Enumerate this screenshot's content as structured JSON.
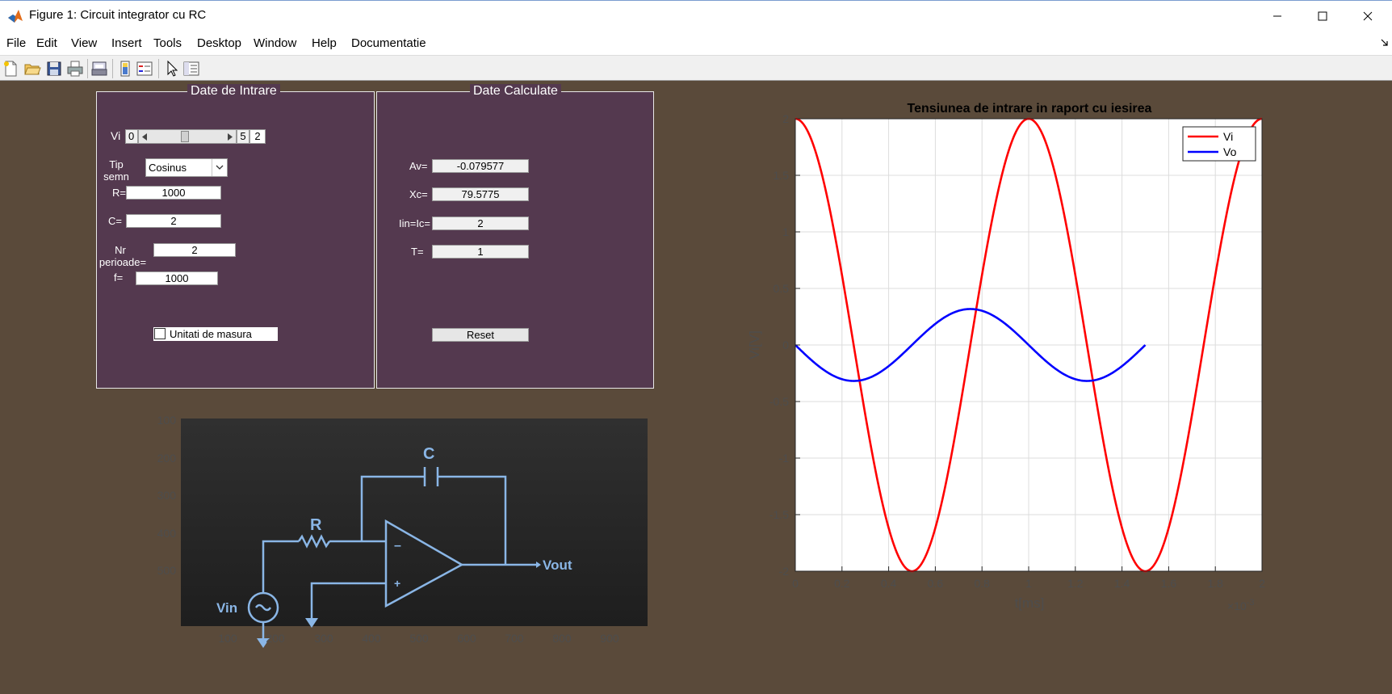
{
  "window": {
    "title": "Figure 1: Circuit integrator cu RC"
  },
  "menu": [
    "File",
    "Edit",
    "View",
    "Insert",
    "Tools",
    "Desktop",
    "Window",
    "Help",
    "Documentatie"
  ],
  "toolbar_icons": [
    "new-figure-icon",
    "open-file-icon",
    "save-icon",
    "print-icon",
    "print-preview-icon",
    "colorbar-icon",
    "legend-icon",
    "pointer-icon",
    "property-inspector-icon"
  ],
  "input_panel": {
    "title": "Date de Intrare",
    "vi_label": "Vi",
    "vi_min": "0",
    "vi_max": "5",
    "vi_value": "2",
    "vi_slider_fraction": 0.4,
    "tip_label_1": "Tip",
    "tip_label_2": "semn",
    "tip_value": "Cosinus",
    "r_label": "R=",
    "r_value": "1000",
    "c_label": "C=",
    "c_value": "2",
    "nr_label_1": "Nr",
    "nr_label_2": "perioade=",
    "nr_value": "2",
    "f_label": "f=",
    "f_value": "1000",
    "units_label": "Unitati de masura"
  },
  "calc_panel": {
    "title": "Date Calculate",
    "av_label": "Av=",
    "av_value": "-0.079577",
    "xc_label": "Xc=",
    "xc_value": "79.5775",
    "i_label": "Iin=Ic=",
    "i_value": "2",
    "t_label": "T=",
    "t_value": "1",
    "reset_label": "Reset"
  },
  "image_axes": {
    "yticks": [
      "100",
      "200",
      "300",
      "400",
      "500"
    ],
    "xticks": [
      "100",
      "200",
      "300",
      "400",
      "500",
      "600",
      "700",
      "800",
      "900"
    ],
    "schematic": {
      "c": "C",
      "r": "R",
      "vin": "Vin",
      "vout": "Vout",
      "minus": "–",
      "plus": "+"
    }
  },
  "chart_data": {
    "type": "line",
    "title": "Tensiunea de intrare in raport cu iesirea",
    "xlabel": "t[ms]",
    "ylabel": "Vi[V]",
    "x_exponent": "×10",
    "x_exponent_power": "-3",
    "xlim": [
      0,
      0.002
    ],
    "ylim": [
      -2,
      2
    ],
    "xticks": [
      "0",
      "0.2",
      "0.4",
      "0.6",
      "0.8",
      "1",
      "1.2",
      "1.4",
      "1.6",
      "1.8",
      "2"
    ],
    "yticks": [
      "2",
      "1.5",
      "1",
      "0.5",
      "0",
      "-0.5",
      "-1",
      "-1.5",
      "-2"
    ],
    "grid": true,
    "legend_position": "top-right",
    "series": [
      {
        "name": "Vi",
        "color": "#ff0000",
        "function": "2*cos(2*pi*1000*t)",
        "x_range": [
          0,
          0.002
        ],
        "x": [
          0,
          0.00025,
          0.0005,
          0.00075,
          0.001,
          0.00125,
          0.0015,
          0.00175,
          0.002
        ],
        "values": [
          2,
          0,
          -2,
          0,
          2,
          0,
          -2,
          0,
          2
        ]
      },
      {
        "name": "Vo",
        "color": "#0000ff",
        "function": "-0.318*sin(2*pi*1000*t)",
        "x_range": [
          0,
          0.0015
        ],
        "x": [
          0,
          0.00025,
          0.0005,
          0.00075,
          0.001,
          0.00125,
          0.0015
        ],
        "values": [
          0,
          -0.318,
          0,
          0.318,
          0,
          -0.318,
          0
        ]
      }
    ]
  }
}
